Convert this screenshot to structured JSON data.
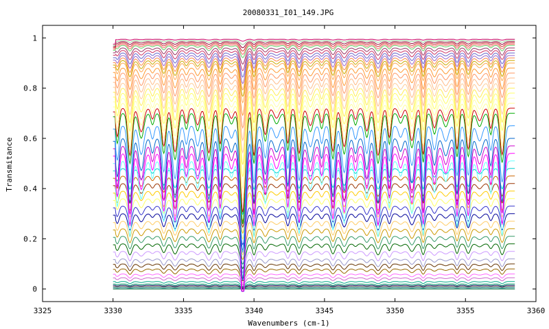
{
  "chart_data": {
    "type": "line",
    "title": "20080331_I01_149.JPG",
    "xlabel": "Wavenumbers (cm-1)",
    "ylabel": "Transmitance",
    "xlim": [
      3325,
      3360
    ],
    "ylim": [
      -0.05,
      1.05
    ],
    "x_ticks": [
      3325,
      3330,
      3335,
      3340,
      3345,
      3350,
      3355,
      3360
    ],
    "y_ticks": [
      0,
      0.2,
      0.4,
      0.6,
      0.8,
      1
    ],
    "y_tick_labels": [
      "0",
      "0.2",
      "0.4",
      "0.6",
      "0.8",
      "1"
    ],
    "grid": false,
    "legend": "none",
    "data_x_range": [
      3330,
      3358.5
    ],
    "absorption_lines": [
      3330.3,
      3331.2,
      3332.0,
      3332.8,
      3333.6,
      3334.4,
      3335.2,
      3336.0,
      3336.8,
      3337.6,
      3338.4,
      3339.2,
      3340.0,
      3340.8,
      3341.6,
      3342.4,
      3343.2,
      3344.0,
      3344.8,
      3345.6,
      3346.4,
      3347.2,
      3348.0,
      3348.8,
      3349.6,
      3350.4,
      3351.2,
      3352.0,
      3352.8,
      3353.6,
      3354.4,
      3355.2,
      3356.0,
      3356.8,
      3357.6
    ],
    "series_baselines": [
      0.0,
      0.005,
      0.01,
      0.015,
      0.02,
      0.03,
      0.045,
      0.06,
      0.08,
      0.1,
      0.12,
      0.15,
      0.18,
      0.21,
      0.24,
      0.27,
      0.3,
      0.33,
      0.36,
      0.39,
      0.42,
      0.45,
      0.48,
      0.51,
      0.54,
      0.57,
      0.6,
      0.65,
      0.7,
      0.72,
      0.74,
      0.76,
      0.78,
      0.8,
      0.82,
      0.84,
      0.86,
      0.88,
      0.9,
      0.91,
      0.92,
      0.93,
      0.94,
      0.95,
      0.96,
      0.97,
      0.975,
      0.98,
      0.985,
      0.99,
      0.995
    ],
    "series_colors": [
      "#006633",
      "#008080",
      "#333333",
      "#1a1a66",
      "#009966",
      "#00aa88",
      "#cc66cc",
      "#ff66ff",
      "#996600",
      "#663300",
      "#9999cc",
      "#cc99ff",
      "#006600",
      "#339966",
      "#cc9900",
      "#ffcc66",
      "#000099",
      "#3333cc",
      "#ffff66",
      "#ffcc00",
      "#993300",
      "#cc6600",
      "#00cccc",
      "#66ffff",
      "#ff00ff",
      "#cc00cc",
      "#0066cc",
      "#3399ff",
      "#00aa00",
      "#cc0000",
      "#ffff99",
      "#ffffaa",
      "#ffff66",
      "#ffee55",
      "#ffcc99",
      "#ffbb88",
      "#ff9966",
      "#ff9933",
      "#ffaa55",
      "#ccaa00",
      "#ff8844",
      "#9966cc",
      "#6666cc",
      "#cc3366",
      "#993366",
      "#66cc66",
      "#ff6666",
      "#cc3333",
      "#990033",
      "#99cc99",
      "#cc0066"
    ]
  }
}
